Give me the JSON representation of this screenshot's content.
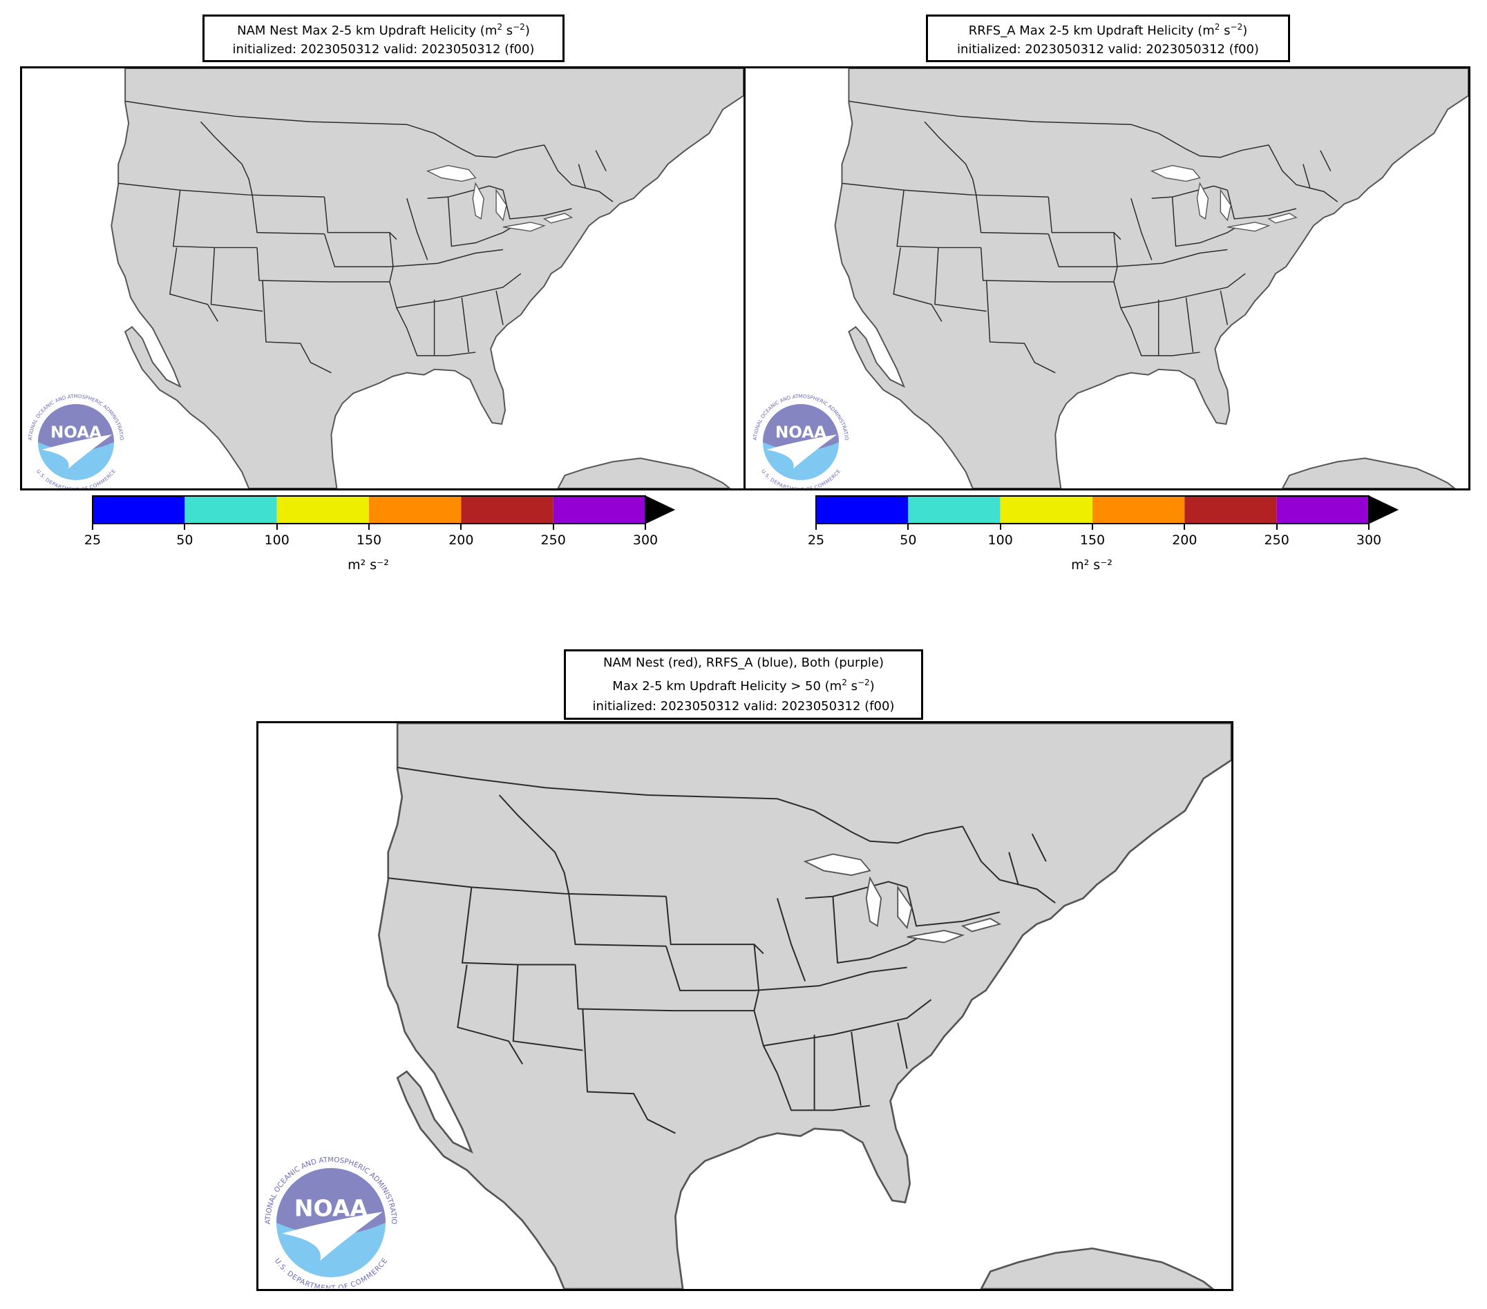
{
  "panels": {
    "nam": {
      "title_line1_prefix": "NAM Nest Max 2-5 km Updraft Helicity (m",
      "title_line1_suffix": ")",
      "title_line2": "initialized: 2023050312 valid: 2023050312 (f00)"
    },
    "rrfs": {
      "title_line1_prefix": "RRFS_A Max 2-5 km Updraft Helicity (m",
      "title_line1_suffix": ")",
      "title_line2": "initialized: 2023050312 valid: 2023050312 (f00)"
    },
    "combined": {
      "title_line1": "NAM Nest (red), RRFS_A (blue), Both (purple)",
      "title_line2_prefix": "Max 2-5 km Updraft Helicity > 50 (m",
      "title_line2_suffix": ")",
      "title_line3": "initialized: 2023050312 valid: 2023050312 (f00)"
    }
  },
  "unit": {
    "base": "m",
    "sup1": "2",
    "mid": " s",
    "sup2": "−2"
  },
  "colorbar": {
    "ticks": [
      "25",
      "50",
      "100",
      "150",
      "200",
      "250",
      "300"
    ],
    "colors": [
      "#0000ff",
      "#40e0d0",
      "#eeee00",
      "#ff8c00",
      "#b22222",
      "#9400d3"
    ],
    "extend_color": "#000000",
    "unit_label": "m² s⁻²"
  },
  "logo": {
    "text": "NOAA",
    "ring_top": "NATIONAL OCEANIC AND ATMOSPHERIC ADMINISTRATION",
    "ring_bottom": "U.S. DEPARTMENT OF COMMERCE"
  },
  "colors": {
    "land": "#d3d3d3",
    "ocean": "#ffffff",
    "noaa_dark": "#8585c2",
    "noaa_light": "#7ec8f2"
  }
}
